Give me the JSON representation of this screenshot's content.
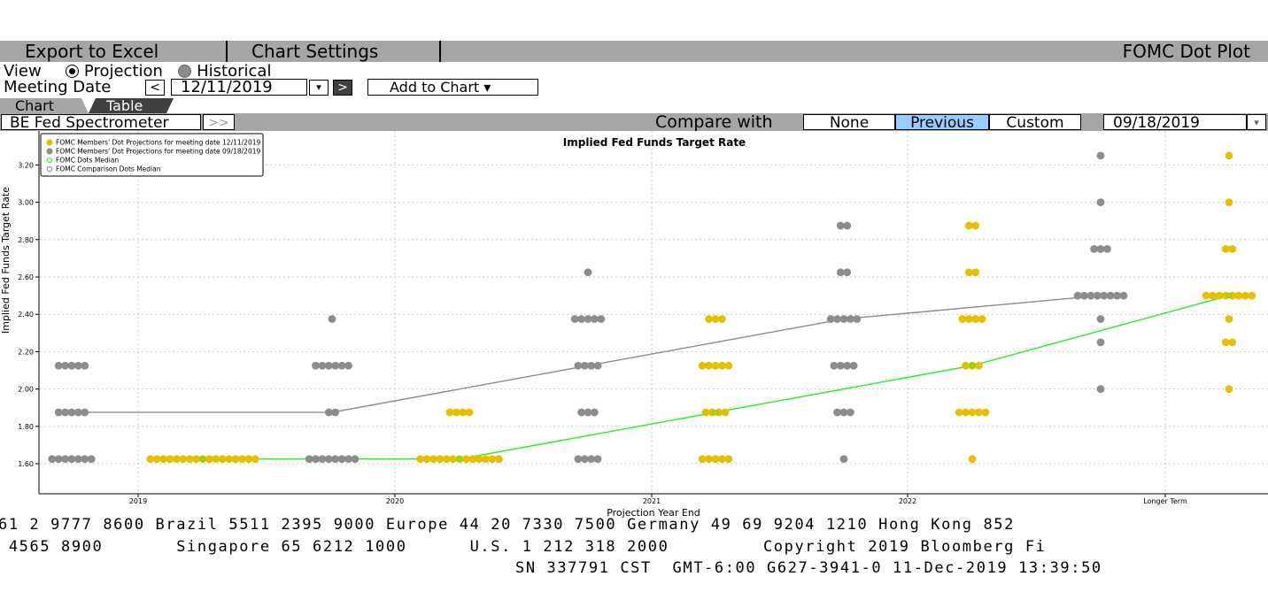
{
  "toolbar": {
    "export_label": "Export to Excel",
    "settings_label": "Chart Settings",
    "app_title": "FOMC Dot Plot"
  },
  "view": {
    "label": "View",
    "projection_label": "Projection",
    "historical_label": "Historical"
  },
  "meeting": {
    "label": "Meeting Date",
    "prev": "<",
    "date": "12/11/2019",
    "dropdown": "▾",
    "next": ">",
    "add_label": "Add to Chart ▾"
  },
  "tabs": {
    "chart": "Chart",
    "table": "Table"
  },
  "compare": {
    "source": "BE Fed Spectrometer",
    "more": ">>",
    "label": "Compare with",
    "none": "None",
    "previous": "Previous",
    "custom": "Custom",
    "date": "09/18/2019",
    "dropdown": "▾"
  },
  "colors": {
    "current": "#e6c000",
    "comparison": "#8c8c8c",
    "median": "#22ee22",
    "comparison_median": "#8c8c8c",
    "selected": "#99ccff"
  },
  "chart_data": {
    "type": "scatter",
    "title": "Implied Fed Funds Target Rate",
    "xlabel": "Projection Year End",
    "ylabel": "Implied Fed Funds Target Rate",
    "categories": [
      "2019",
      "2020",
      "2021",
      "2022",
      "Longer Term"
    ],
    "ylim": [
      1.5,
      3.3
    ],
    "yticks": [
      "1.60",
      "1.80",
      "2.00",
      "2.20",
      "2.40",
      "2.60",
      "2.80",
      "3.00",
      "3.20"
    ],
    "grid": true,
    "legend_position": "top-left",
    "legend": [
      "FOMC Members' Dot Projections for meeting date 12/11/2019",
      "FOMC Members' Dot Projections for meeting date 09/18/2019",
      "FOMC Dots Median",
      "FOMC Comparison Dots Median"
    ],
    "series": [
      {
        "name": "FOMC Members' Dot Projections for meeting date 12/11/2019",
        "points": [
          {
            "x": "2019",
            "y": 1.625,
            "count": 17
          },
          {
            "x": "2020",
            "y": 1.625,
            "count": 13
          },
          {
            "x": "2020",
            "y": 1.875,
            "count": 4
          },
          {
            "x": "2021",
            "y": 1.625,
            "count": 5
          },
          {
            "x": "2021",
            "y": 1.875,
            "count": 4
          },
          {
            "x": "2021",
            "y": 2.125,
            "count": 5
          },
          {
            "x": "2021",
            "y": 2.375,
            "count": 3
          },
          {
            "x": "2022",
            "y": 1.625,
            "count": 1
          },
          {
            "x": "2022",
            "y": 1.875,
            "count": 5
          },
          {
            "x": "2022",
            "y": 2.125,
            "count": 3
          },
          {
            "x": "2022",
            "y": 2.375,
            "count": 4
          },
          {
            "x": "2022",
            "y": 2.625,
            "count": 2
          },
          {
            "x": "2022",
            "y": 2.875,
            "count": 2
          },
          {
            "x": "Longer Term",
            "y": 2.0,
            "count": 1
          },
          {
            "x": "Longer Term",
            "y": 2.25,
            "count": 2
          },
          {
            "x": "Longer Term",
            "y": 2.375,
            "count": 1
          },
          {
            "x": "Longer Term",
            "y": 2.5,
            "count": 8
          },
          {
            "x": "Longer Term",
            "y": 2.75,
            "count": 2
          },
          {
            "x": "Longer Term",
            "y": 3.0,
            "count": 1
          },
          {
            "x": "Longer Term",
            "y": 3.25,
            "count": 1
          }
        ]
      },
      {
        "name": "FOMC Members' Dot Projections for meeting date 09/18/2019",
        "points": [
          {
            "x": "2019",
            "y": 1.625,
            "count": 7
          },
          {
            "x": "2019",
            "y": 1.875,
            "count": 5
          },
          {
            "x": "2019",
            "y": 2.125,
            "count": 5
          },
          {
            "x": "2020",
            "y": 1.625,
            "count": 8
          },
          {
            "x": "2020",
            "y": 1.875,
            "count": 2
          },
          {
            "x": "2020",
            "y": 2.125,
            "count": 6
          },
          {
            "x": "2020",
            "y": 2.375,
            "count": 1
          },
          {
            "x": "2021",
            "y": 1.625,
            "count": 4
          },
          {
            "x": "2021",
            "y": 1.875,
            "count": 3
          },
          {
            "x": "2021",
            "y": 2.125,
            "count": 4
          },
          {
            "x": "2021",
            "y": 2.375,
            "count": 5
          },
          {
            "x": "2021",
            "y": 2.625,
            "count": 1
          },
          {
            "x": "2022",
            "y": 1.625,
            "count": 1
          },
          {
            "x": "2022",
            "y": 1.875,
            "count": 3
          },
          {
            "x": "2022",
            "y": 2.125,
            "count": 4
          },
          {
            "x": "2022",
            "y": 2.375,
            "count": 5
          },
          {
            "x": "2022",
            "y": 2.625,
            "count": 2
          },
          {
            "x": "2022",
            "y": 2.875,
            "count": 2
          },
          {
            "x": "Longer Term",
            "y": 2.0,
            "count": 1
          },
          {
            "x": "Longer Term",
            "y": 2.25,
            "count": 1
          },
          {
            "x": "Longer Term",
            "y": 2.375,
            "count": 1
          },
          {
            "x": "Longer Term",
            "y": 2.5,
            "count": 8
          },
          {
            "x": "Longer Term",
            "y": 2.75,
            "count": 3
          },
          {
            "x": "Longer Term",
            "y": 3.0,
            "count": 1
          },
          {
            "x": "Longer Term",
            "y": 3.25,
            "count": 1
          }
        ]
      },
      {
        "name": "FOMC Dots Median",
        "values": [
          1.625,
          1.625,
          1.875,
          2.125,
          2.5
        ]
      },
      {
        "name": "FOMC Comparison Dots Median",
        "values": [
          1.875,
          1.875,
          2.125,
          2.375,
          2.5
        ]
      }
    ]
  },
  "footer": {
    "line1": "61 2 9777 8600 Brazil 5511 2395 9000 Europe 44 20 7330 7500 Germany 49 69 9204 1210 Hong Kong 852",
    "line2": " 4565 8900       Singapore 65 6212 1000      U.S. 1 212 318 2000         Copyright 2019 Bloomberg Fi",
    "line3": "SN 337791 CST  GMT-6:00 G627-3941-0 11-Dec-2019 13:39:50"
  }
}
